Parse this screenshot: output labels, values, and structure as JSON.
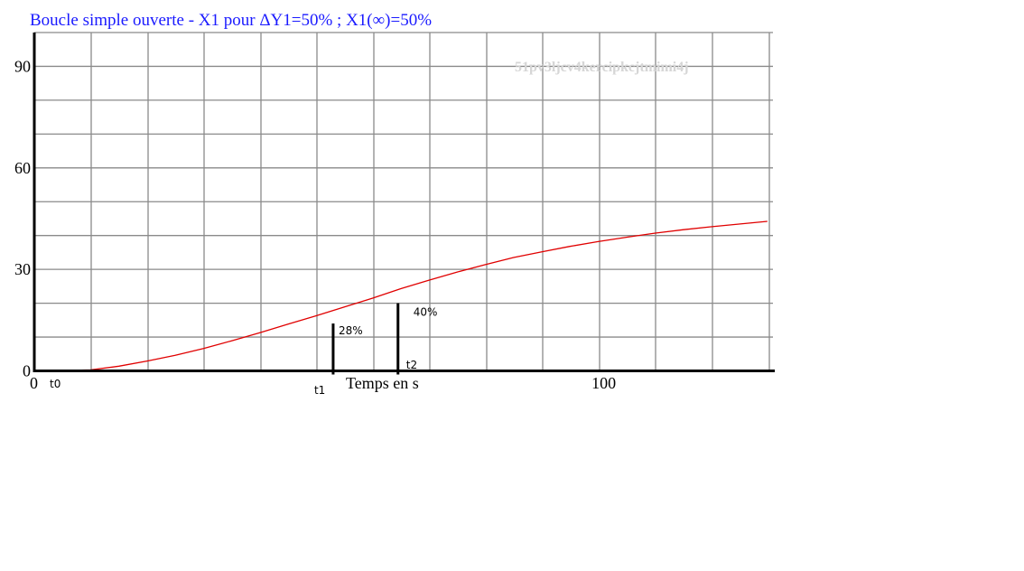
{
  "chart_data": {
    "type": "line",
    "title": "Boucle simple ouverte - X1 pour ΔY1=50% ; X1(∞)=50%",
    "xlabel": "Temps en s",
    "ylabel": "",
    "xlim": [
      0,
      131
    ],
    "ylim": [
      0,
      100
    ],
    "grid": true,
    "yticks": [
      "0",
      "30",
      "60",
      "90"
    ],
    "xtick_labels": [
      {
        "x": 0,
        "label": "0"
      },
      {
        "x": 101,
        "label": "100"
      }
    ],
    "series": [
      {
        "color": "#e00000",
        "x": [
          0,
          5,
          10,
          15,
          20,
          25,
          30,
          35,
          40,
          45,
          50,
          55,
          60,
          65,
          70,
          75,
          80,
          85,
          90,
          95,
          100,
          105,
          110,
          115,
          120,
          125,
          130
        ],
        "y": [
          0,
          0.1,
          0.3,
          1.4,
          2.9,
          4.6,
          6.6,
          8.9,
          11.3,
          13.8,
          16.3,
          18.9,
          21.5,
          24.3,
          26.8,
          29.2,
          31.4,
          33.5,
          35.2,
          36.8,
          38.2,
          39.5,
          40.7,
          41.7,
          42.6,
          43.4,
          44.2
        ]
      }
    ],
    "markers": [
      {
        "x": 53,
        "y": 14,
        "point_label": "t1",
        "value_label": "28%"
      },
      {
        "x": 64.5,
        "y": 20,
        "point_label": "t2",
        "value_label": "40%"
      }
    ],
    "origin_label": "t0",
    "watermark": "51pv3ljcv4kercipkcjtmimi4j"
  }
}
